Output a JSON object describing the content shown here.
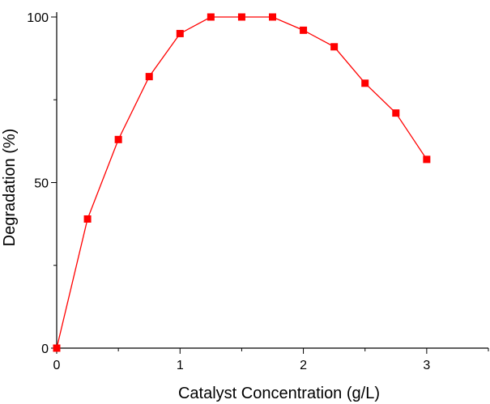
{
  "chart_data": {
    "type": "line",
    "title": "",
    "xlabel": "Catalyst Concentration (g/L)",
    "ylabel": "Degradation (%)",
    "xlim": [
      0,
      3.5
    ],
    "ylim": [
      0,
      100
    ],
    "x_ticks": [
      0,
      1,
      2,
      3
    ],
    "y_ticks": [
      0,
      50,
      100
    ],
    "x_tick_labels": [
      "0",
      "1",
      "2",
      "3"
    ],
    "y_tick_labels": [
      "0",
      "50",
      "100"
    ],
    "legend": "none",
    "grid": false,
    "series": [
      {
        "name": "Degradation",
        "color": "#ff0000",
        "marker": "square",
        "x": [
          0,
          0.25,
          0.5,
          0.75,
          1.0,
          1.25,
          1.5,
          1.75,
          2.0,
          2.25,
          2.5,
          2.75,
          3.0
        ],
        "values": [
          0,
          39,
          63,
          82,
          95,
          100,
          100,
          100,
          96,
          91,
          80,
          71,
          57
        ]
      }
    ]
  }
}
